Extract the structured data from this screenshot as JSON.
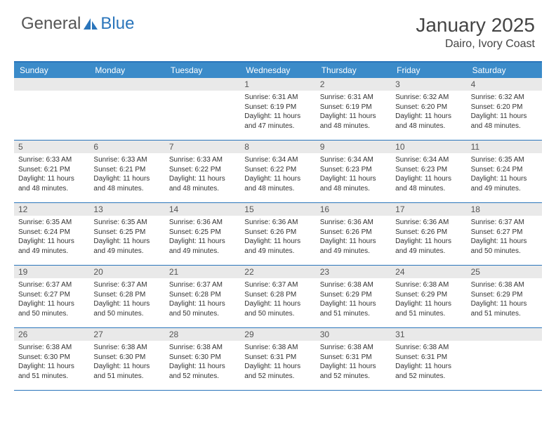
{
  "logo": {
    "general": "General",
    "blue": "Blue"
  },
  "title": "January 2025",
  "location": "Dairo, Ivory Coast",
  "colors": {
    "header_bar": "#3b8bc9",
    "accent": "#2a75bb",
    "daynum_bg": "#e9e9e9",
    "text": "#444444"
  },
  "weekdays": [
    "Sunday",
    "Monday",
    "Tuesday",
    "Wednesday",
    "Thursday",
    "Friday",
    "Saturday"
  ],
  "weeks": [
    [
      null,
      null,
      null,
      {
        "n": "1",
        "sr": "6:31 AM",
        "ss": "6:19 PM",
        "dl": "11 hours and 47 minutes."
      },
      {
        "n": "2",
        "sr": "6:31 AM",
        "ss": "6:19 PM",
        "dl": "11 hours and 48 minutes."
      },
      {
        "n": "3",
        "sr": "6:32 AM",
        "ss": "6:20 PM",
        "dl": "11 hours and 48 minutes."
      },
      {
        "n": "4",
        "sr": "6:32 AM",
        "ss": "6:20 PM",
        "dl": "11 hours and 48 minutes."
      }
    ],
    [
      {
        "n": "5",
        "sr": "6:33 AM",
        "ss": "6:21 PM",
        "dl": "11 hours and 48 minutes."
      },
      {
        "n": "6",
        "sr": "6:33 AM",
        "ss": "6:21 PM",
        "dl": "11 hours and 48 minutes."
      },
      {
        "n": "7",
        "sr": "6:33 AM",
        "ss": "6:22 PM",
        "dl": "11 hours and 48 minutes."
      },
      {
        "n": "8",
        "sr": "6:34 AM",
        "ss": "6:22 PM",
        "dl": "11 hours and 48 minutes."
      },
      {
        "n": "9",
        "sr": "6:34 AM",
        "ss": "6:23 PM",
        "dl": "11 hours and 48 minutes."
      },
      {
        "n": "10",
        "sr": "6:34 AM",
        "ss": "6:23 PM",
        "dl": "11 hours and 48 minutes."
      },
      {
        "n": "11",
        "sr": "6:35 AM",
        "ss": "6:24 PM",
        "dl": "11 hours and 49 minutes."
      }
    ],
    [
      {
        "n": "12",
        "sr": "6:35 AM",
        "ss": "6:24 PM",
        "dl": "11 hours and 49 minutes."
      },
      {
        "n": "13",
        "sr": "6:35 AM",
        "ss": "6:25 PM",
        "dl": "11 hours and 49 minutes."
      },
      {
        "n": "14",
        "sr": "6:36 AM",
        "ss": "6:25 PM",
        "dl": "11 hours and 49 minutes."
      },
      {
        "n": "15",
        "sr": "6:36 AM",
        "ss": "6:26 PM",
        "dl": "11 hours and 49 minutes."
      },
      {
        "n": "16",
        "sr": "6:36 AM",
        "ss": "6:26 PM",
        "dl": "11 hours and 49 minutes."
      },
      {
        "n": "17",
        "sr": "6:36 AM",
        "ss": "6:26 PM",
        "dl": "11 hours and 49 minutes."
      },
      {
        "n": "18",
        "sr": "6:37 AM",
        "ss": "6:27 PM",
        "dl": "11 hours and 50 minutes."
      }
    ],
    [
      {
        "n": "19",
        "sr": "6:37 AM",
        "ss": "6:27 PM",
        "dl": "11 hours and 50 minutes."
      },
      {
        "n": "20",
        "sr": "6:37 AM",
        "ss": "6:28 PM",
        "dl": "11 hours and 50 minutes."
      },
      {
        "n": "21",
        "sr": "6:37 AM",
        "ss": "6:28 PM",
        "dl": "11 hours and 50 minutes."
      },
      {
        "n": "22",
        "sr": "6:37 AM",
        "ss": "6:28 PM",
        "dl": "11 hours and 50 minutes."
      },
      {
        "n": "23",
        "sr": "6:38 AM",
        "ss": "6:29 PM",
        "dl": "11 hours and 51 minutes."
      },
      {
        "n": "24",
        "sr": "6:38 AM",
        "ss": "6:29 PM",
        "dl": "11 hours and 51 minutes."
      },
      {
        "n": "25",
        "sr": "6:38 AM",
        "ss": "6:29 PM",
        "dl": "11 hours and 51 minutes."
      }
    ],
    [
      {
        "n": "26",
        "sr": "6:38 AM",
        "ss": "6:30 PM",
        "dl": "11 hours and 51 minutes."
      },
      {
        "n": "27",
        "sr": "6:38 AM",
        "ss": "6:30 PM",
        "dl": "11 hours and 51 minutes."
      },
      {
        "n": "28",
        "sr": "6:38 AM",
        "ss": "6:30 PM",
        "dl": "11 hours and 52 minutes."
      },
      {
        "n": "29",
        "sr": "6:38 AM",
        "ss": "6:31 PM",
        "dl": "11 hours and 52 minutes."
      },
      {
        "n": "30",
        "sr": "6:38 AM",
        "ss": "6:31 PM",
        "dl": "11 hours and 52 minutes."
      },
      {
        "n": "31",
        "sr": "6:38 AM",
        "ss": "6:31 PM",
        "dl": "11 hours and 52 minutes."
      },
      null
    ]
  ],
  "labels": {
    "sunrise": "Sunrise:",
    "sunset": "Sunset:",
    "daylight": "Daylight:"
  }
}
